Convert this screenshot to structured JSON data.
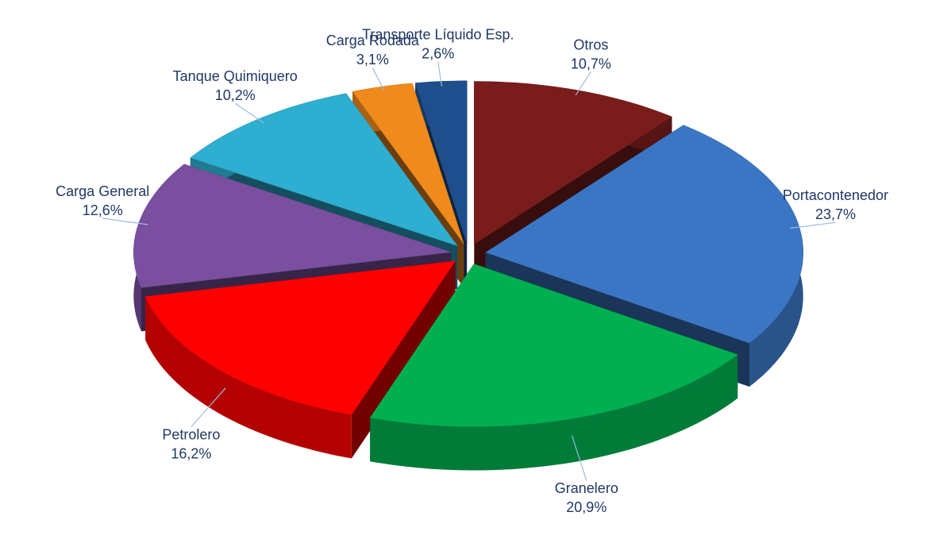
{
  "chart_data": {
    "type": "pie3d",
    "categories": [
      "Otros",
      "Portacontenedor",
      "Granelero",
      "Petrolero",
      "Carga General",
      "Tanque Quimiquero",
      "Carga Rodada",
      "Transporte Líquido Esp."
    ],
    "values": [
      10.7,
      23.7,
      20.9,
      16.2,
      12.6,
      10.2,
      3.1,
      2.6
    ],
    "value_labels": [
      "10,7%",
      "23,7%",
      "20,9%",
      "16,2%",
      "12,6%",
      "10,2%",
      "3,1%",
      "2,6%"
    ],
    "colors": [
      "#7b1c1c",
      "#3a76c4",
      "#00b050",
      "#ff0000",
      "#7a4fa0",
      "#2eaed0",
      "#f08a1c",
      "#1f4e8c"
    ]
  }
}
